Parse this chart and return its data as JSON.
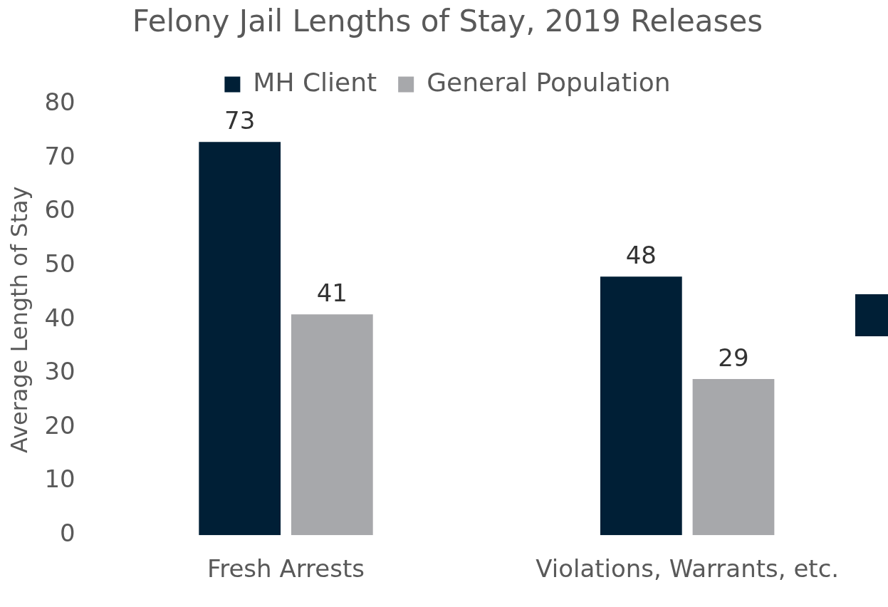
{
  "chart_data": {
    "type": "bar",
    "title": "Felony Jail Lengths of Stay, 2019 Releases",
    "ylabel": "Average Length of Stay",
    "categories": [
      "Fresh Arrests",
      "Violations, Warrants, etc."
    ],
    "series": [
      {
        "name": "MH Client",
        "color": "#001f36",
        "values": [
          73,
          48
        ]
      },
      {
        "name": "General Population",
        "color": "#a7a8ab",
        "values": [
          41,
          29
        ]
      }
    ],
    "ylim": [
      0,
      80
    ],
    "yticks": [
      0,
      10,
      20,
      30,
      40,
      50,
      60,
      70,
      80
    ],
    "grid": false,
    "legend": "top",
    "data_labels": true
  }
}
